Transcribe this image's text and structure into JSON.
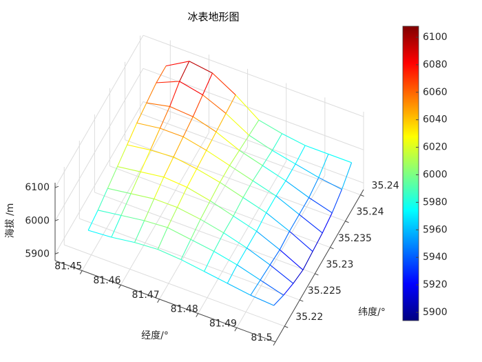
{
  "chart_data": {
    "type": "mesh",
    "title": "冰表地形图",
    "xlabel": "经度/°",
    "ylabel": "纬度/°",
    "zlabel": "海拔 /m",
    "x": [
      81.45,
      81.456,
      81.462,
      81.468,
      81.474,
      81.48,
      81.486,
      81.492,
      81.498
    ],
    "y": [
      35.219,
      35.2222,
      35.2254,
      35.2286,
      35.2318,
      35.235,
      35.2382,
      35.2414,
      35.2446
    ],
    "z": [
      [
        5970,
        5975,
        5985,
        5990,
        5985,
        5975,
        5965,
        5955,
        5950
      ],
      [
        5980,
        5990,
        6000,
        6005,
        5995,
        5985,
        5970,
        5950,
        5930
      ],
      [
        5995,
        6005,
        6015,
        6015,
        6005,
        5990,
        5970,
        5945,
        5915
      ],
      [
        6010,
        6020,
        6030,
        6025,
        6010,
        5990,
        5970,
        5940,
        5905
      ],
      [
        6025,
        6035,
        6040,
        6030,
        6015,
        5995,
        5975,
        5945,
        5910
      ],
      [
        6040,
        6050,
        6050,
        6035,
        6015,
        5995,
        5975,
        5945,
        5915
      ],
      [
        6050,
        6065,
        6060,
        6040,
        6010,
        5990,
        5970,
        5945,
        5925
      ],
      [
        6060,
        6090,
        6075,
        6045,
        6005,
        5985,
        5970,
        5955,
        5945
      ],
      [
        6060,
        6100,
        6090,
        6050,
        6000,
        5985,
        5975,
        5975,
        5975
      ]
    ],
    "xlim": [
      81.443,
      81.5
    ],
    "ylim": [
      35.217,
      35.246
    ],
    "zlim": [
      5880,
      6115
    ],
    "xticks": [
      81.45,
      81.46,
      81.47,
      81.48,
      81.49,
      81.5
    ],
    "yticks": [
      35.22,
      35.225,
      35.23,
      35.235,
      35.24,
      {
        "value": 35.245,
        "label": "35.24"
      }
    ],
    "zticks": [
      5900,
      6000,
      6100
    ],
    "colormap": "jet",
    "clim": [
      5894,
      6108
    ],
    "colorbar_ticks": [
      5900,
      5920,
      5940,
      5960,
      5980,
      6000,
      6020,
      6040,
      6060,
      6080,
      6100
    ],
    "grid": true
  }
}
